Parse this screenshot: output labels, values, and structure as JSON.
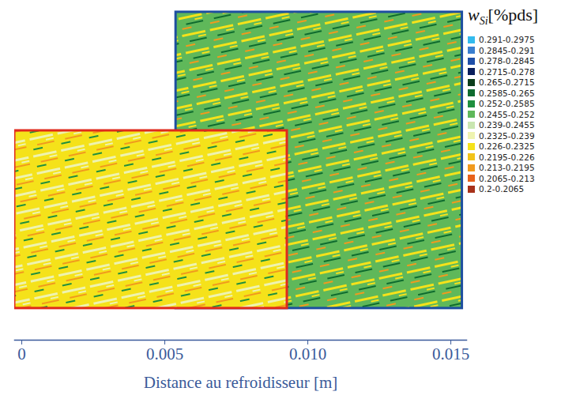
{
  "chart_data": {
    "type": "map",
    "xlabel": "Distance au refroidisseur [m]",
    "xlim": [
      -0.00025,
      0.01555
    ],
    "xticks": [
      0,
      0.005,
      {
        "value": 0.01,
        "label": "0.010"
      },
      0.015
    ],
    "legend": "right",
    "colorbar": {
      "title": {
        "symbol": "w",
        "subscript": "Si",
        "unit": "[%pds]"
      },
      "items": [
        {
          "label": "0.291-0.2975",
          "color": "#33bbee"
        },
        {
          "label": "0.2845-0.291",
          "color": "#3a7fd0"
        },
        {
          "label": "0.278-0.2845",
          "color": "#1f4fa8"
        },
        {
          "label": "0.2715-0.278",
          "color": "#0a1f5c"
        },
        {
          "label": "0.265-0.2715",
          "color": "#0b3d1a"
        },
        {
          "label": "0.2585-0.265",
          "color": "#0e6b2e"
        },
        {
          "label": "0.252-0.2585",
          "color": "#1e8f3e"
        },
        {
          "label": "0.2455-0.252",
          "color": "#5fb85a"
        },
        {
          "label": "0.239-0.2455",
          "color": "#c9e6b0"
        },
        {
          "label": "0.2325-0.239",
          "color": "#eef3b0"
        },
        {
          "label": "0.226-0.2325",
          "color": "#f5e21a"
        },
        {
          "label": "0.2195-0.226",
          "color": "#f2c318"
        },
        {
          "label": "0.213-0.2195",
          "color": "#f19a1d"
        },
        {
          "label": "0.2065-0.213",
          "color": "#e8621a"
        },
        {
          "label": "0.2-0.2065",
          "color": "#a8321a"
        }
      ]
    },
    "panels": [
      {
        "x": [
          0.00539,
          0.0154
        ],
        "color": "#1e4fa0"
      },
      {
        "x": [
          -0.00025,
          0.00928
        ],
        "color": "#e02a1c"
      }
    ]
  }
}
